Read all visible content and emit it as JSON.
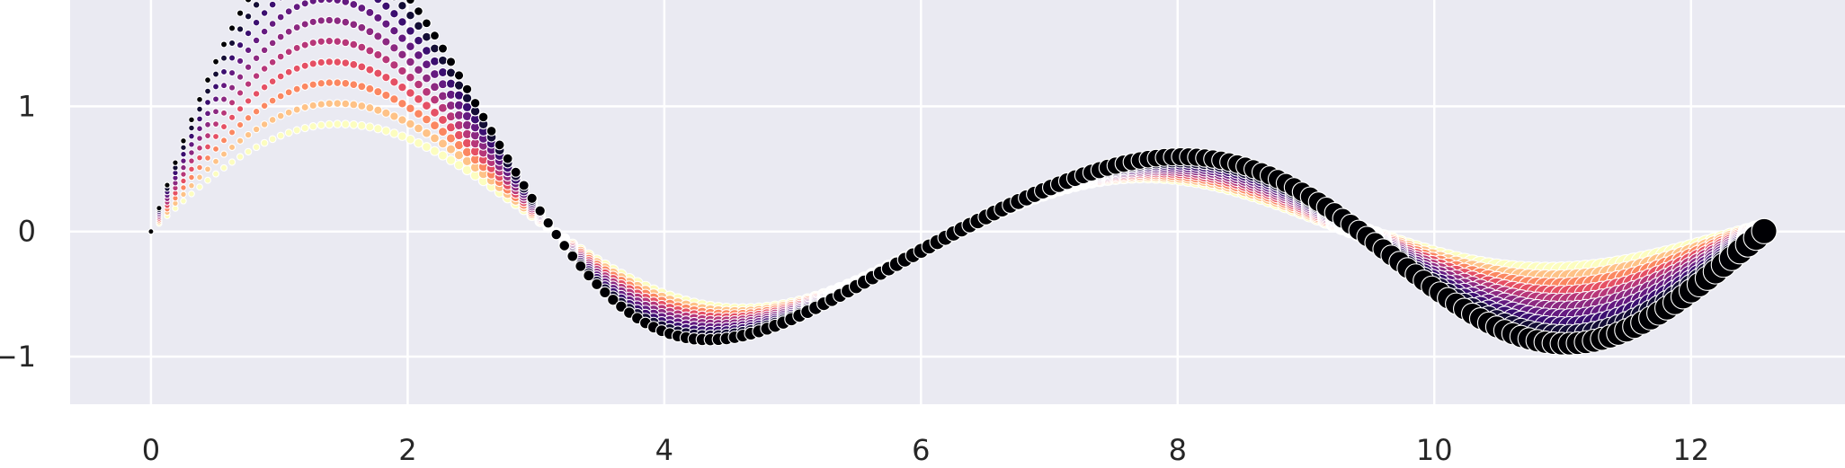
{
  "chart_data": {
    "type": "scatter",
    "title": "",
    "xlabel": "",
    "ylabel": "",
    "xlim": [
      -0.63,
      13.2
    ],
    "ylim": [
      -1.38,
      1.85
    ],
    "xticks": [
      0,
      2,
      4,
      6,
      8,
      10,
      12
    ],
    "yticks": [
      -1,
      0,
      1
    ],
    "xtick_labels": [
      "0",
      "2",
      "4",
      "6",
      "8",
      "10",
      "12"
    ],
    "ytick_labels": [
      "−1",
      "0",
      "1"
    ],
    "grid": true,
    "legend": "none",
    "background": "#eaeaf2",
    "grid_color": "#ffffff",
    "palette": "magma_r",
    "palette_stops": [
      "#fcfdbf",
      "#fec287",
      "#fb8761",
      "#e55064",
      "#b73779",
      "#8c2981",
      "#641a80",
      "#3b0f70",
      "#140e36",
      "#000004"
    ],
    "series_count": 10,
    "points_per_series": 200,
    "x_range": [
      0,
      12.57
    ],
    "function": "y = sin(x) * exp(-0.1x) * (1 + k * (1 + cos(x/2))), series k = 0..9",
    "amplitude_coefficient_per_series": 0.11,
    "decay_rate": 0.1,
    "marker_size_range": [
      3,
      14
    ],
    "marker_sizes": "grow with x from small to large"
  }
}
